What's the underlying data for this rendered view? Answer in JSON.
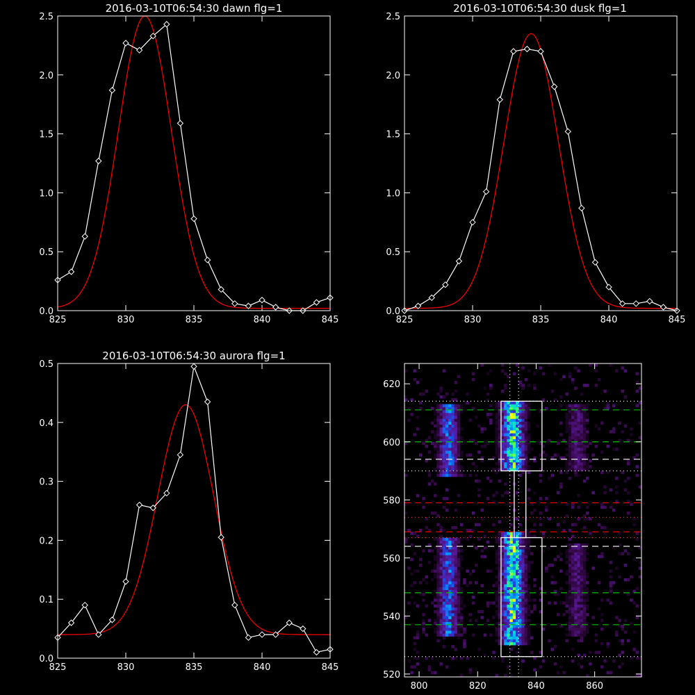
{
  "chart_data": [
    {
      "type": "line",
      "title": "2016-03-10T06:54:30 dawn flg=1",
      "xlim": [
        825,
        845
      ],
      "ylim": [
        0,
        2.5
      ],
      "xticks": [
        "825",
        "830",
        "835",
        "840",
        "845"
      ],
      "yticks": [
        "0.0",
        "0.5",
        "1.0",
        "1.5",
        "2.0",
        "2.5"
      ],
      "colors": {
        "data": "#ffffff",
        "fit": "#ff0000"
      },
      "data_points": {
        "x": [
          825,
          826,
          827,
          828,
          829,
          830,
          831,
          832,
          833,
          834,
          835,
          836,
          837,
          838,
          839,
          840,
          841,
          842,
          843,
          844,
          845
        ],
        "y": [
          0.26,
          0.33,
          0.63,
          1.27,
          1.87,
          2.27,
          2.21,
          2.33,
          2.43,
          1.59,
          0.78,
          0.43,
          0.18,
          0.06,
          0.04,
          0.09,
          0.03,
          -0.01,
          -0.02,
          0.07,
          0.11
        ]
      },
      "fit": {
        "amp": 2.48,
        "center": 831.4,
        "sigma": 1.95,
        "offset": 0.02
      }
    },
    {
      "type": "line",
      "title": "2016-03-10T06:54:30 dusk flg=1",
      "xlim": [
        825,
        845
      ],
      "ylim": [
        0,
        2.5
      ],
      "xticks": [
        "825",
        "830",
        "835",
        "840",
        "845"
      ],
      "yticks": [
        "0.0",
        "0.5",
        "1.0",
        "1.5",
        "2.0",
        "2.5"
      ],
      "colors": {
        "data": "#ffffff",
        "fit": "#ff0000"
      },
      "data_points": {
        "x": [
          825,
          826,
          827,
          828,
          829,
          830,
          831,
          832,
          833,
          834,
          835,
          836,
          837,
          838,
          839,
          840,
          841,
          842,
          843,
          844,
          845
        ],
        "y": [
          0.0,
          0.04,
          0.11,
          0.22,
          0.42,
          0.75,
          1.01,
          1.79,
          2.2,
          2.22,
          2.2,
          1.9,
          1.52,
          0.87,
          0.41,
          0.2,
          0.06,
          0.06,
          0.08,
          0.03,
          -0.01
        ]
      },
      "fit": {
        "amp": 2.33,
        "center": 834.3,
        "sigma": 2.0,
        "offset": 0.02
      }
    },
    {
      "type": "line",
      "title": "2016-03-10T06:54:30 aurora flg=1",
      "xlim": [
        825,
        845
      ],
      "ylim": [
        0,
        0.5
      ],
      "xticks": [
        "825",
        "830",
        "835",
        "840",
        "845"
      ],
      "yticks": [
        "0.0",
        "0.1",
        "0.2",
        "0.3",
        "0.4",
        "0.5"
      ],
      "colors": {
        "data": "#ffffff",
        "fit": "#ff0000"
      },
      "data_points": {
        "x": [
          825,
          826,
          827,
          828,
          829,
          830,
          831,
          832,
          833,
          834,
          835,
          836,
          837,
          838,
          839,
          840,
          841,
          842,
          843,
          844,
          845
        ],
        "y": [
          0.035,
          0.06,
          0.09,
          0.04,
          0.065,
          0.13,
          0.26,
          0.255,
          0.28,
          0.345,
          0.495,
          0.435,
          0.205,
          0.09,
          0.035,
          0.04,
          0.04,
          0.06,
          0.05,
          0.01,
          0.015
        ]
      },
      "fit": {
        "amp": 0.39,
        "center": 834.4,
        "sigma": 2.05,
        "offset": 0.04
      }
    },
    {
      "type": "heatmap",
      "xlim": [
        795,
        876
      ],
      "ylim": [
        519,
        627
      ],
      "xticks": [
        "800",
        "820",
        "840",
        "860"
      ],
      "yticks": [
        "520",
        "540",
        "560",
        "580",
        "600",
        "620"
      ],
      "colormap": [
        "#000000",
        "#3a0a4e",
        "#5a1aa0",
        "#2040e0",
        "#00a0ff",
        "#00e0d0",
        "#40ff60",
        "#ffff00",
        "#ff2000"
      ],
      "emission_columns": [
        {
          "x_center": 810,
          "width": 6,
          "y_ranges": [
            [
              588,
              612
            ],
            [
              533,
              566
            ]
          ],
          "peak": 0.55
        },
        {
          "x_center": 832,
          "width": 7,
          "y_ranges": [
            [
              590,
              613
            ],
            [
              530,
              568
            ]
          ],
          "peak": 0.9
        },
        {
          "x_center": 854,
          "width": 6,
          "y_ranges": [
            [
              590,
              612
            ],
            [
              533,
              564
            ]
          ],
          "peak": 0.25
        }
      ],
      "boxes": [
        {
          "x": [
            828,
            842
          ],
          "y": [
            590,
            614
          ]
        },
        {
          "x": [
            828,
            842
          ],
          "y": [
            526,
            567
          ]
        },
        {
          "x": [
            832.5,
            836.5
          ],
          "y": [
            567,
            590
          ]
        }
      ],
      "horizontal_lines": [
        {
          "y": 611,
          "color": "#00c000",
          "style": "dash"
        },
        {
          "y": 600,
          "color": "#00c000",
          "style": "dash"
        },
        {
          "y": 594,
          "color": "#ffffff",
          "style": "dash"
        },
        {
          "y": 579,
          "color": "#ff0000",
          "style": "dash"
        },
        {
          "y": 569,
          "color": "#ff0000",
          "style": "dash"
        },
        {
          "y": 564,
          "color": "#ffffff",
          "style": "dash"
        },
        {
          "y": 548,
          "color": "#00c000",
          "style": "dash"
        },
        {
          "y": 537,
          "color": "#00c000",
          "style": "dash"
        },
        {
          "y": 614,
          "color": "#ffffff",
          "style": "dot"
        },
        {
          "y": 590,
          "color": "#ffffff",
          "style": "dot"
        },
        {
          "y": 574,
          "color": "#ff4040",
          "style": "dot"
        },
        {
          "y": 567,
          "color": "#ff4040",
          "style": "dot"
        },
        {
          "y": 526,
          "color": "#ffffff",
          "style": "dot"
        }
      ],
      "vertical_lines": [
        {
          "x": 831,
          "color": "#ffffff",
          "style": "dot"
        },
        {
          "x": 834,
          "color": "#ffffff",
          "style": "dot"
        }
      ]
    }
  ]
}
